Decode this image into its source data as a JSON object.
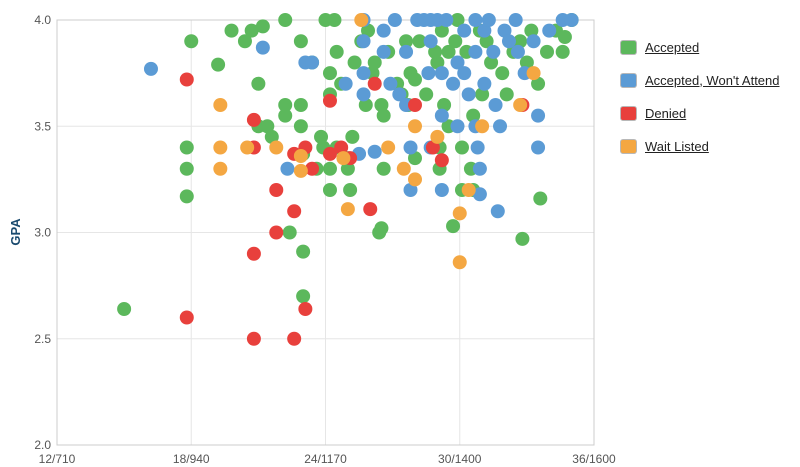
{
  "chart_data": {
    "type": "scatter",
    "ylabel": "GPA",
    "xlabel": "",
    "x_axis": {
      "ticks": [
        "12/710",
        "18/940",
        "24/1170",
        "30/1400",
        "36/1600"
      ],
      "range": [
        "12/710",
        "36/1600"
      ],
      "values_are": "ACT composite (tick labels pair ACT/SAT)"
    },
    "y_axis": {
      "ticks": [
        "2.0",
        "2.5",
        "3.0",
        "3.5",
        "4.0"
      ],
      "range": [
        2.0,
        4.0
      ]
    },
    "grid": true,
    "legend_position": "right",
    "series": [
      {
        "name": "Accepted",
        "color": "#5cb85c",
        "points": [
          [
            15.0,
            2.64
          ],
          [
            17.8,
            3.4
          ],
          [
            17.8,
            3.3
          ],
          [
            17.8,
            3.17
          ],
          [
            18.0,
            3.9
          ],
          [
            19.2,
            3.79
          ],
          [
            19.8,
            3.95
          ],
          [
            20.4,
            3.9
          ],
          [
            20.7,
            3.95
          ],
          [
            21.0,
            3.7
          ],
          [
            21.0,
            3.5
          ],
          [
            21.2,
            3.97
          ],
          [
            21.4,
            3.5
          ],
          [
            21.6,
            3.45
          ],
          [
            22.2,
            3.6
          ],
          [
            22.2,
            3.55
          ],
          [
            22.2,
            4.0
          ],
          [
            22.4,
            3.0
          ],
          [
            22.9,
            3.9
          ],
          [
            22.9,
            3.6
          ],
          [
            22.9,
            3.5
          ],
          [
            23.0,
            3.37
          ],
          [
            23.0,
            2.91
          ],
          [
            23.0,
            2.7
          ],
          [
            23.4,
            3.8
          ],
          [
            23.6,
            3.3
          ],
          [
            23.8,
            3.45
          ],
          [
            23.9,
            3.4
          ],
          [
            24.0,
            4.0
          ],
          [
            24.2,
            3.75
          ],
          [
            24.2,
            3.65
          ],
          [
            24.2,
            3.3
          ],
          [
            24.2,
            3.2
          ],
          [
            24.4,
            4.0
          ],
          [
            24.5,
            3.85
          ],
          [
            24.5,
            3.4
          ],
          [
            24.7,
            3.7
          ],
          [
            25.0,
            3.35
          ],
          [
            25.0,
            3.3
          ],
          [
            25.1,
            3.2
          ],
          [
            25.2,
            3.45
          ],
          [
            25.3,
            3.8
          ],
          [
            25.6,
            3.9
          ],
          [
            25.8,
            3.6
          ],
          [
            25.9,
            3.95
          ],
          [
            26.1,
            3.75
          ],
          [
            26.2,
            3.8
          ],
          [
            26.4,
            3.0
          ],
          [
            26.5,
            3.6
          ],
          [
            26.5,
            3.02
          ],
          [
            26.6,
            3.3
          ],
          [
            26.6,
            3.55
          ],
          [
            26.8,
            3.85
          ],
          [
            27.2,
            3.7
          ],
          [
            27.4,
            3.65
          ],
          [
            27.6,
            3.9
          ],
          [
            27.7,
            3.6
          ],
          [
            27.8,
            3.75
          ],
          [
            28.0,
            3.72
          ],
          [
            28.0,
            3.35
          ],
          [
            28.2,
            3.9
          ],
          [
            28.5,
            3.65
          ],
          [
            28.9,
            3.85
          ],
          [
            29.0,
            3.8
          ],
          [
            29.1,
            3.4
          ],
          [
            29.1,
            3.3
          ],
          [
            29.2,
            3.95
          ],
          [
            29.3,
            3.6
          ],
          [
            29.5,
            3.5
          ],
          [
            29.5,
            3.85
          ],
          [
            29.7,
            3.03
          ],
          [
            29.8,
            3.9
          ],
          [
            29.9,
            4.0
          ],
          [
            30.1,
            3.2
          ],
          [
            30.1,
            3.4
          ],
          [
            30.3,
            3.85
          ],
          [
            30.5,
            3.3
          ],
          [
            30.6,
            3.55
          ],
          [
            30.6,
            3.2
          ],
          [
            30.9,
            3.95
          ],
          [
            31.0,
            3.65
          ],
          [
            31.2,
            3.9
          ],
          [
            31.4,
            3.8
          ],
          [
            31.9,
            3.75
          ],
          [
            32.1,
            3.65
          ],
          [
            32.4,
            3.85
          ],
          [
            32.7,
            3.9
          ],
          [
            32.8,
            2.97
          ],
          [
            33.0,
            3.8
          ],
          [
            33.2,
            3.95
          ],
          [
            33.5,
            3.7
          ],
          [
            33.6,
            3.16
          ],
          [
            33.9,
            3.85
          ],
          [
            34.3,
            3.95
          ],
          [
            34.6,
            3.85
          ],
          [
            34.7,
            3.92
          ],
          [
            35.0,
            4.0
          ]
        ]
      },
      {
        "name": "Accepted, Won't Attend",
        "color": "#5b9bd5",
        "points": [
          [
            16.2,
            3.77
          ],
          [
            21.2,
            3.87
          ],
          [
            22.3,
            3.3
          ],
          [
            23.1,
            3.8
          ],
          [
            23.4,
            3.8
          ],
          [
            24.9,
            3.7
          ],
          [
            25.5,
            3.37
          ],
          [
            25.7,
            4.0
          ],
          [
            25.7,
            3.9
          ],
          [
            25.7,
            3.75
          ],
          [
            25.7,
            3.65
          ],
          [
            26.2,
            3.38
          ],
          [
            26.6,
            3.95
          ],
          [
            26.6,
            3.85
          ],
          [
            26.9,
            3.7
          ],
          [
            27.1,
            4.0
          ],
          [
            27.3,
            3.65
          ],
          [
            27.6,
            3.85
          ],
          [
            27.6,
            3.6
          ],
          [
            27.8,
            3.2
          ],
          [
            27.8,
            3.4
          ],
          [
            28.1,
            4.0
          ],
          [
            28.4,
            4.0
          ],
          [
            28.6,
            3.75
          ],
          [
            28.7,
            4.0
          ],
          [
            28.7,
            3.4
          ],
          [
            28.7,
            3.9
          ],
          [
            29.0,
            4.0
          ],
          [
            29.2,
            3.55
          ],
          [
            29.2,
            3.2
          ],
          [
            29.2,
            3.75
          ],
          [
            29.4,
            4.0
          ],
          [
            29.7,
            3.7
          ],
          [
            29.9,
            3.8
          ],
          [
            29.9,
            3.5
          ],
          [
            30.2,
            3.95
          ],
          [
            30.2,
            3.75
          ],
          [
            30.4,
            3.65
          ],
          [
            30.7,
            4.0
          ],
          [
            30.7,
            3.85
          ],
          [
            30.7,
            3.5
          ],
          [
            30.8,
            3.4
          ],
          [
            30.9,
            3.3
          ],
          [
            30.9,
            3.18
          ],
          [
            31.1,
            3.95
          ],
          [
            31.1,
            3.7
          ],
          [
            31.3,
            4.0
          ],
          [
            31.5,
            3.85
          ],
          [
            31.6,
            3.6
          ],
          [
            31.7,
            3.1
          ],
          [
            31.8,
            3.5
          ],
          [
            32.0,
            3.95
          ],
          [
            32.2,
            3.9
          ],
          [
            32.5,
            4.0
          ],
          [
            32.6,
            3.85
          ],
          [
            32.9,
            3.75
          ],
          [
            33.3,
            3.9
          ],
          [
            33.5,
            3.55
          ],
          [
            33.5,
            3.4
          ],
          [
            34.0,
            3.95
          ],
          [
            34.6,
            4.0
          ],
          [
            35.0,
            4.0
          ]
        ]
      },
      {
        "name": "Denied",
        "color": "#e8403c",
        "points": [
          [
            17.8,
            3.72
          ],
          [
            17.8,
            2.6
          ],
          [
            20.8,
            3.53
          ],
          [
            20.8,
            3.4
          ],
          [
            20.8,
            2.9
          ],
          [
            20.8,
            2.5
          ],
          [
            21.8,
            3.2
          ],
          [
            21.8,
            3.0
          ],
          [
            22.6,
            3.37
          ],
          [
            22.6,
            3.1
          ],
          [
            22.6,
            2.5
          ],
          [
            23.1,
            3.4
          ],
          [
            23.1,
            2.64
          ],
          [
            23.4,
            3.3
          ],
          [
            24.2,
            3.62
          ],
          [
            24.2,
            3.37
          ],
          [
            24.7,
            3.4
          ],
          [
            25.1,
            3.35
          ],
          [
            26.0,
            3.11
          ],
          [
            26.2,
            3.7
          ],
          [
            28.0,
            3.6
          ],
          [
            28.8,
            3.4
          ],
          [
            29.2,
            3.34
          ],
          [
            32.8,
            3.6
          ]
        ]
      },
      {
        "name": "Wait Listed",
        "color": "#f4a742",
        "points": [
          [
            19.3,
            3.6
          ],
          [
            19.3,
            3.4
          ],
          [
            19.3,
            3.3
          ],
          [
            20.5,
            3.4
          ],
          [
            21.8,
            3.4
          ],
          [
            22.9,
            3.36
          ],
          [
            22.9,
            3.29
          ],
          [
            24.8,
            3.35
          ],
          [
            25.0,
            3.11
          ],
          [
            25.6,
            4.0
          ],
          [
            26.8,
            3.4
          ],
          [
            27.5,
            3.3
          ],
          [
            28.0,
            3.5
          ],
          [
            28.0,
            3.25
          ],
          [
            29.0,
            3.45
          ],
          [
            30.0,
            2.86
          ],
          [
            30.0,
            3.09
          ],
          [
            30.4,
            3.2
          ],
          [
            31.0,
            3.5
          ],
          [
            32.7,
            3.6
          ],
          [
            33.3,
            3.75
          ]
        ]
      }
    ]
  }
}
